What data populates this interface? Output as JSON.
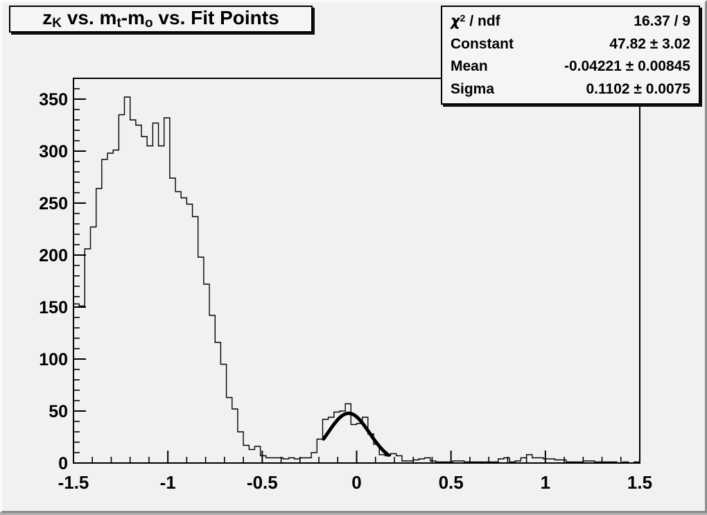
{
  "window": {
    "background": "#f2f1ef",
    "bevel_light": "#fbfbfa",
    "bevel_dark": "#8e8d8c"
  },
  "title_box": {
    "title_text": "z_K vs. m_t-m_o vs. Fit Points",
    "title_parts": [
      {
        "t": "z"
      },
      {
        "sub": "K"
      },
      {
        "t": " vs. m"
      },
      {
        "sub": "t"
      },
      {
        "t": "-m"
      },
      {
        "sub": "o"
      },
      {
        "t": " vs. Fit Points"
      }
    ]
  },
  "stats_box": {
    "rows": [
      {
        "label_text": "χ2 / ndf",
        "label_parts": [
          {
            "t": "χ",
            "cls": "greek"
          },
          {
            "sup": "2"
          },
          {
            "t": " / ndf"
          }
        ],
        "value": "16.37 / 9"
      },
      {
        "label_text": "Constant",
        "label_parts": [
          {
            "t": "Constant"
          }
        ],
        "value": "47.82 ± 3.02"
      },
      {
        "label_text": "Mean",
        "label_parts": [
          {
            "t": "Mean"
          }
        ],
        "value": "-0.04221 ± 0.00845"
      },
      {
        "label_text": "Sigma",
        "label_parts": [
          {
            "t": "Sigma"
          }
        ],
        "value": "0.1102 ± 0.0075"
      }
    ]
  },
  "chart_data": {
    "type": "bar",
    "subtype": "step-histogram",
    "title": "z_K vs. m_t-m_o vs. Fit Points",
    "xlabel": "",
    "ylabel": "",
    "xlim": [
      -1.5,
      1.5
    ],
    "ylim": [
      0,
      370
    ],
    "grid": false,
    "bin_start": -1.5,
    "bin_width": 0.03,
    "n_bins": 100,
    "bins": [
      153,
      151,
      206,
      227,
      264,
      292,
      298,
      301,
      335,
      352,
      330,
      325,
      314,
      305,
      327,
      305,
      332,
      274,
      261,
      255,
      249,
      237,
      198,
      172,
      142,
      116,
      95,
      63,
      52,
      30,
      17,
      13,
      16,
      7,
      5,
      5,
      5,
      4,
      5,
      4,
      5,
      5,
      10,
      23,
      42,
      44,
      49,
      50,
      57,
      37,
      38,
      44,
      28,
      18,
      8,
      7,
      9,
      7,
      2,
      2,
      3,
      4,
      5,
      2,
      1,
      1,
      1,
      2,
      2,
      1,
      1,
      1,
      1,
      1,
      1,
      4,
      5,
      1,
      2,
      5,
      8,
      5,
      5,
      4,
      4,
      3,
      3,
      1,
      1,
      1,
      2,
      2,
      1,
      1,
      1,
      1,
      0,
      1,
      0,
      1
    ],
    "x_axis": {
      "major_tick_values": [
        -1.5,
        -1,
        -0.5,
        0,
        0.5,
        1,
        1.5
      ],
      "major_tick_labels": [
        "-1.5",
        "-1",
        "-0.5",
        "0",
        "0.5",
        "1",
        "1.5"
      ],
      "minor_tick_step": 0.1
    },
    "y_axis": {
      "major_tick_values": [
        0,
        50,
        100,
        150,
        200,
        250,
        300,
        350
      ],
      "major_tick_labels": [
        "0",
        "50",
        "100",
        "150",
        "200",
        "250",
        "300",
        "350"
      ],
      "minor_tick_step": 10
    },
    "fit": {
      "type": "gaussian",
      "constant": 47.82,
      "mean": -0.04221,
      "sigma": 0.1102,
      "draw_range": [
        -0.175,
        0.17
      ]
    },
    "colors": {
      "frame": "#000000",
      "histogram_line": "#000000",
      "fit_line": "#000000",
      "tick_label": "#000000"
    }
  }
}
